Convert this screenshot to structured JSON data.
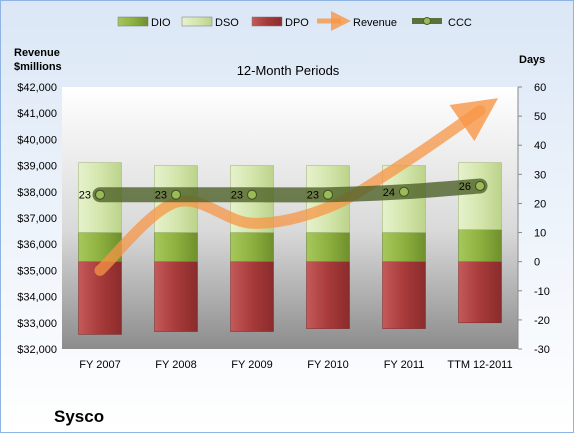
{
  "chart_data": {
    "type": "bar",
    "title": "12-Month Periods",
    "company": "Sysco",
    "left_axis_title": [
      "Revenue",
      "$millions"
    ],
    "right_axis_title": "Days",
    "categories": [
      "FY 2007",
      "FY 2008",
      "FY 2009",
      "FY 2010",
      "FY 2011",
      "TTM 12-2011"
    ],
    "left_axis": {
      "min": 32000,
      "max": 42000,
      "step": 1000,
      "tick_labels": [
        "$32,000",
        "$33,000",
        "$34,000",
        "$35,000",
        "$36,000",
        "$37,000",
        "$38,000",
        "$39,000",
        "$40,000",
        "$41,000",
        "$42,000"
      ]
    },
    "right_axis": {
      "min": -30,
      "max": 60,
      "step": 10,
      "tick_labels": [
        "-30",
        "-20",
        "-10",
        "0",
        "10",
        "20",
        "30",
        "40",
        "50",
        "60"
      ]
    },
    "series": [
      {
        "name": "DIO",
        "kind": "stacked-bar",
        "axis": "right",
        "color": "#8db13f",
        "values": [
          10,
          10,
          10,
          10,
          10,
          11
        ]
      },
      {
        "name": "DSO",
        "kind": "stacked-bar",
        "axis": "right",
        "color": "#d4e6ad",
        "values": [
          24,
          23,
          23,
          23,
          23,
          23
        ]
      },
      {
        "name": "DPO",
        "kind": "negative-bar",
        "axis": "right",
        "color": "#a83a3a",
        "values": [
          -25,
          -24,
          -24,
          -23,
          -23,
          -21
        ]
      },
      {
        "name": "Revenue",
        "kind": "line",
        "axis": "left",
        "color": "#f79646",
        "values": [
          35000,
          37600,
          36800,
          37400,
          39100,
          41100
        ]
      },
      {
        "name": "CCC",
        "kind": "line",
        "axis": "right",
        "color": "#4f6228",
        "values": [
          23,
          23,
          23,
          23,
          24,
          26
        ],
        "labels": [
          "23",
          "23",
          "23",
          "23",
          "24",
          "26"
        ]
      }
    ],
    "legend_position": "top",
    "grid": false
  }
}
